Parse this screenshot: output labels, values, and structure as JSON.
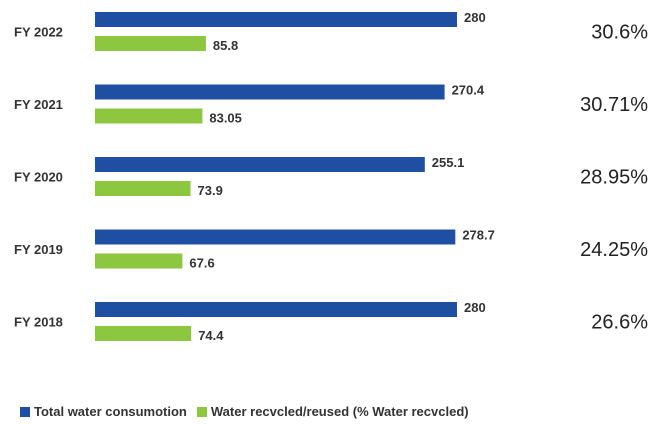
{
  "chart_data": {
    "type": "bar",
    "orientation": "horizontal",
    "categories": [
      "FY 2022",
      "FY 2021",
      "FY 2020",
      "FY 2019",
      "FY 2018"
    ],
    "series": [
      {
        "name": "Total water consumotion",
        "color": "#1f4fa3",
        "values": [
          280,
          270.4,
          255.1,
          278.7,
          280
        ]
      },
      {
        "name": "Water recvcled/reused (% Water recvcled)",
        "color": "#8dc63f",
        "values": [
          85.8,
          83.05,
          73.9,
          67.6,
          74.4
        ]
      }
    ],
    "value_labels": [
      [
        "280",
        "270.4",
        "255.1",
        "278.7",
        "280"
      ],
      [
        "85.8",
        "83.05",
        "73.9",
        "67.6",
        "74.4"
      ]
    ],
    "percent_recycled": [
      "30.6%",
      "30.71%",
      "28.95%",
      "24.25%",
      "26.6%"
    ],
    "legend_position": "bottom-left",
    "grid": false
  }
}
